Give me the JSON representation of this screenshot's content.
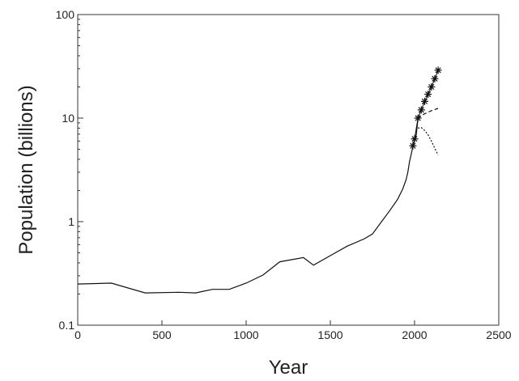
{
  "chart_data": {
    "type": "line",
    "title": "",
    "xlabel": "Year",
    "ylabel": "Population (billions)",
    "xlim": [
      0,
      2500
    ],
    "ylim": [
      0.1,
      100
    ],
    "yscale": "log",
    "grid": false,
    "x_ticks": [
      0,
      500,
      1000,
      1500,
      2000,
      2500
    ],
    "x_tick_labels": [
      "0",
      "500",
      "1000",
      "1500",
      "2000",
      "2500"
    ],
    "y_ticks": [
      0.1,
      1,
      10,
      100
    ],
    "y_tick_labels": [
      "0.1",
      "1",
      "10",
      "100"
    ],
    "series": [
      {
        "style": "solid",
        "x": [
          0,
          200,
          400,
          600,
          700,
          800,
          900,
          1000,
          1100,
          1200,
          1340,
          1400,
          1500,
          1600,
          1700,
          1750,
          1800,
          1850,
          1900,
          1930,
          1950,
          1960,
          1970,
          1980,
          1990,
          2000,
          2010,
          2020
        ],
        "y": [
          0.25,
          0.255,
          0.205,
          0.208,
          0.205,
          0.222,
          0.222,
          0.255,
          0.305,
          0.41,
          0.45,
          0.38,
          0.47,
          0.58,
          0.68,
          0.76,
          0.98,
          1.26,
          1.65,
          2.07,
          2.55,
          3.0,
          3.8,
          4.45,
          5.3,
          6.1,
          6.9,
          9.8
        ]
      },
      {
        "style": "star",
        "x": [
          1990,
          2000,
          2020,
          2040,
          2060,
          2080,
          2100,
          2120,
          2140
        ],
        "y": [
          5.4,
          6.3,
          10.0,
          12.0,
          14.5,
          17.0,
          20.0,
          24.0,
          29.0
        ]
      },
      {
        "style": "dashed",
        "x": [
          2020,
          2040,
          2060,
          2080,
          2100,
          2120,
          2140
        ],
        "y": [
          9.8,
          10.6,
          11.0,
          11.4,
          11.8,
          12.1,
          12.4
        ]
      },
      {
        "style": "dotted",
        "x": [
          2020,
          2040,
          2060,
          2080,
          2100,
          2120,
          2140
        ],
        "y": [
          8.0,
          8.1,
          7.6,
          6.9,
          6.0,
          5.1,
          4.4
        ]
      }
    ]
  }
}
